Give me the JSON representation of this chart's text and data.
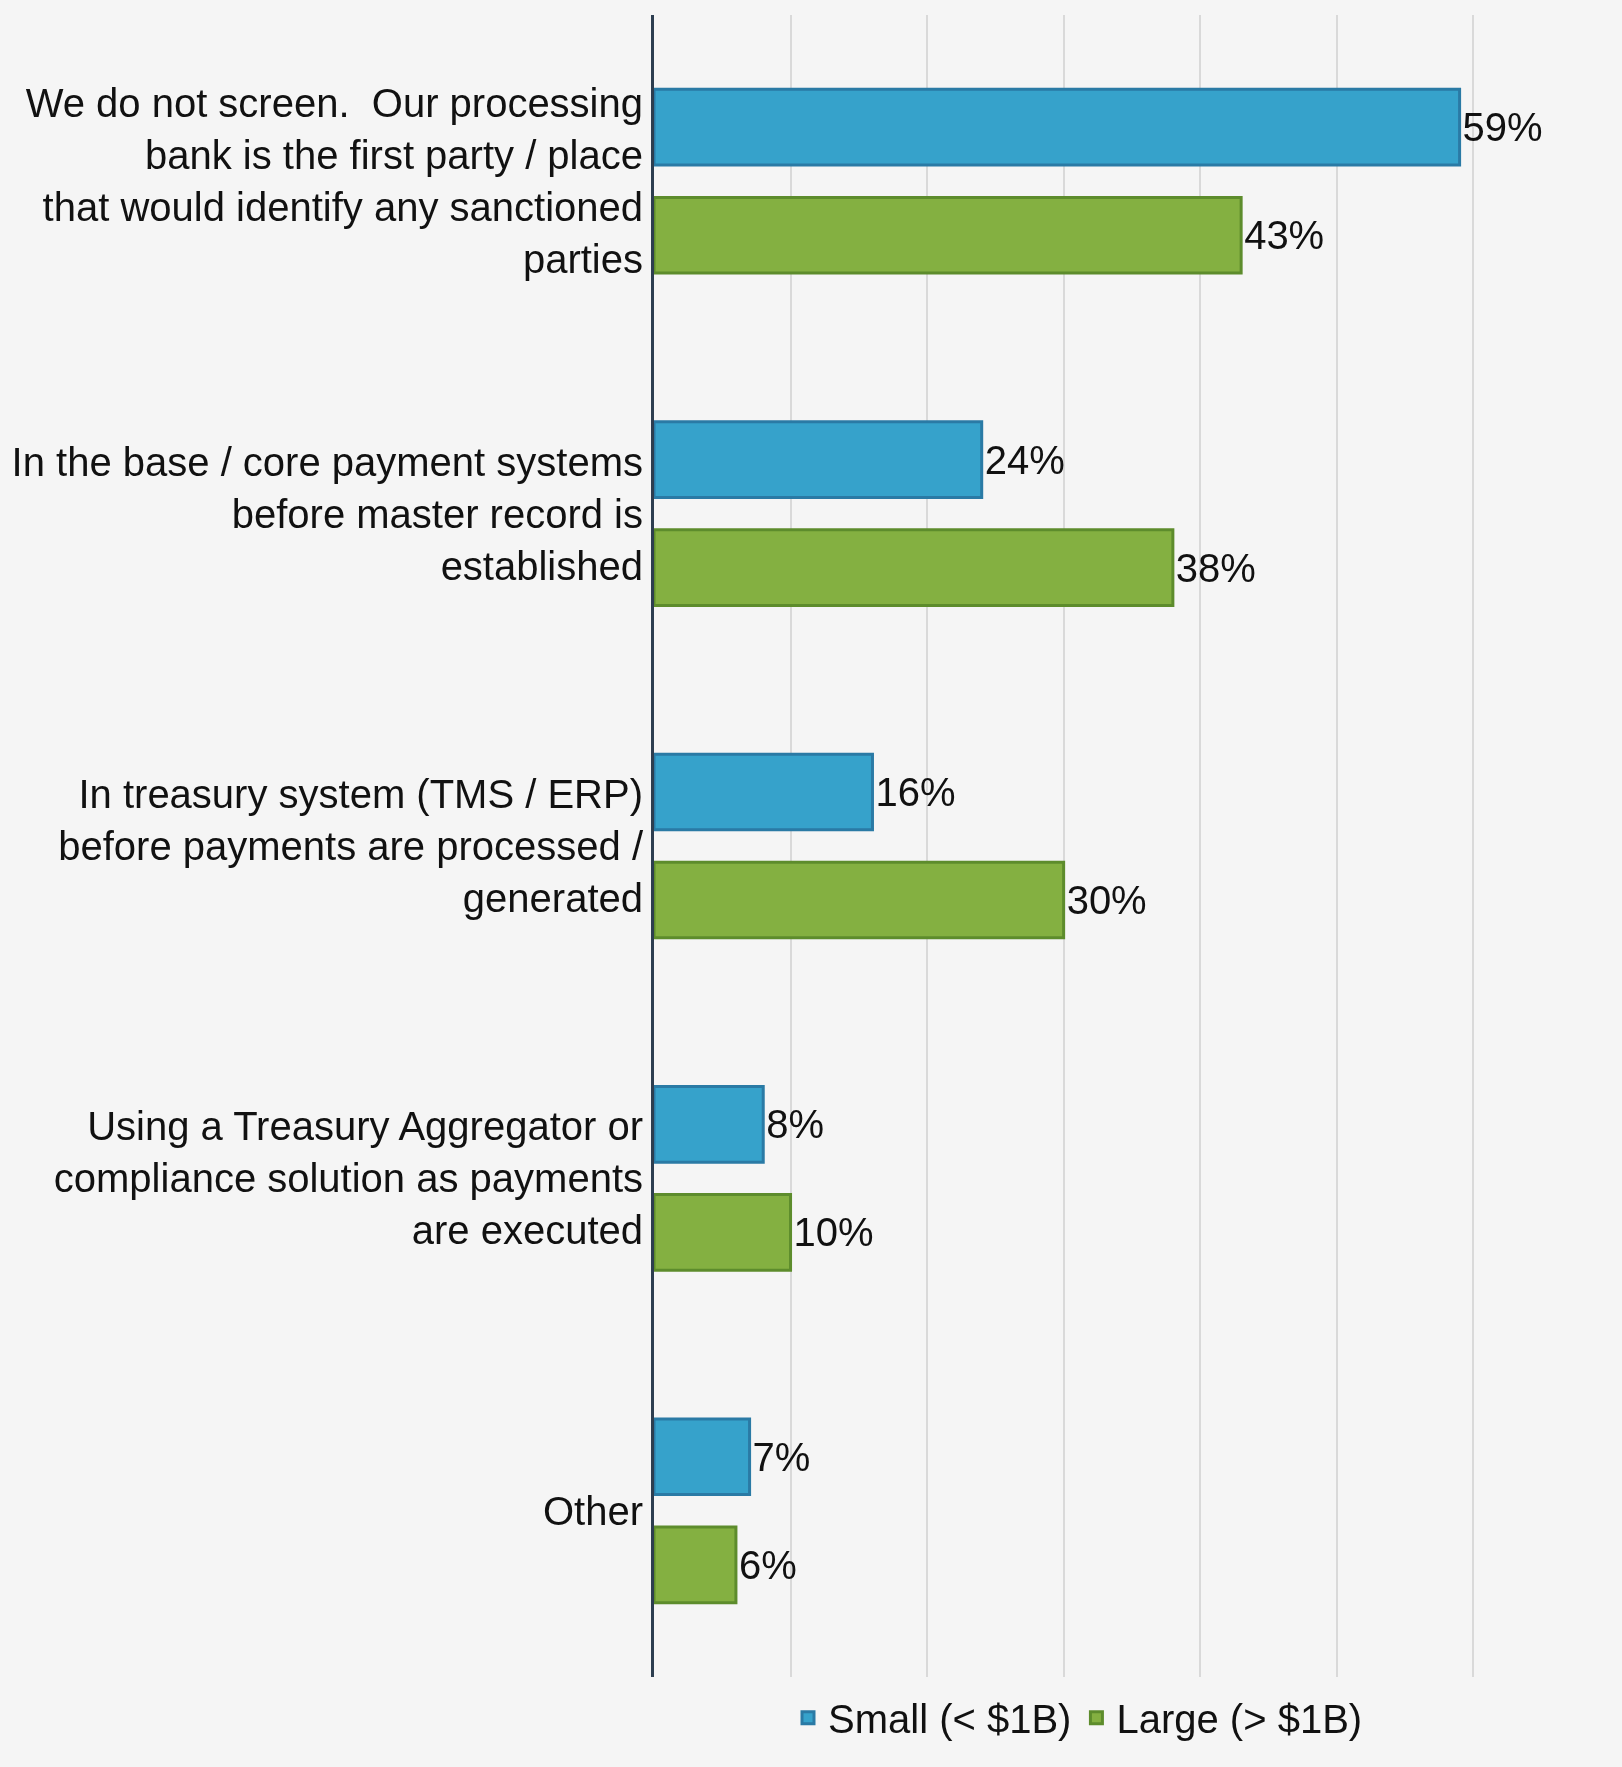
{
  "chart_data": {
    "type": "bar",
    "orientation": "horizontal",
    "categories": [
      "We do not screen.  Our processing bank is the first party / place that would identify any sanctioned parties",
      "In the base / core payment systems before master record is established",
      "In treasury system (TMS / ERP) before payments are processed / generated",
      "Using a Treasury Aggregator or compliance solution as payments are executed",
      "Other"
    ],
    "series": [
      {
        "name": "Small (< $1B)",
        "color": "#36a2cb",
        "values": [
          59,
          24,
          16,
          8,
          7
        ],
        "value_labels": [
          "59%",
          "24%",
          "16%",
          "8%",
          "7%"
        ]
      },
      {
        "name": "Large (> $1B)",
        "color": "#84b041",
        "values": [
          43,
          38,
          30,
          10,
          6
        ],
        "value_labels": [
          "43%",
          "38%",
          "30%",
          "10%",
          "6%"
        ]
      }
    ],
    "tick_labels": "y",
    "grid": "x",
    "legend": "bottom"
  }
}
